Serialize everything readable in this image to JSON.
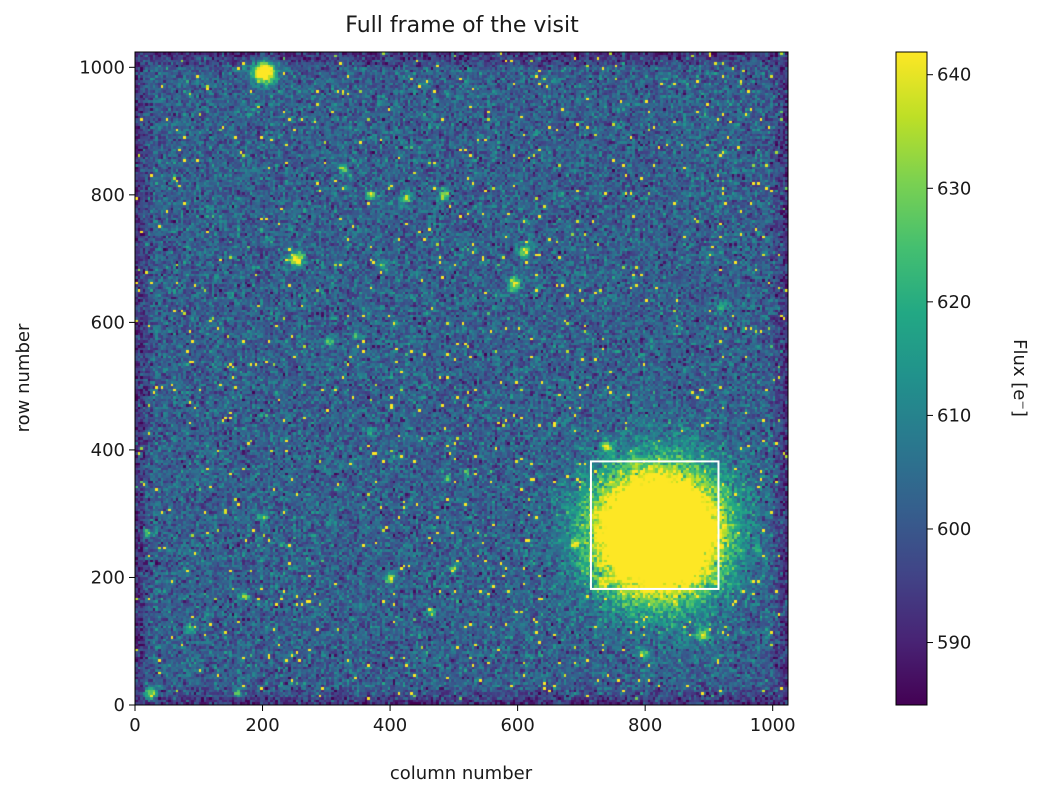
{
  "chart_data": {
    "type": "heatmap",
    "title": "Full frame of the visit",
    "xlabel": "column number",
    "ylabel": "row number",
    "xlim": [
      0,
      1024
    ],
    "ylim": [
      0,
      1024
    ],
    "x_ticks": [
      0,
      200,
      400,
      600,
      800,
      1000
    ],
    "x_tick_labels": [
      "0",
      "200",
      "400",
      "600",
      "800",
      "1000"
    ],
    "y_ticks": [
      0,
      200,
      400,
      600,
      800,
      1000
    ],
    "y_tick_labels": [
      "0",
      "200",
      "400",
      "600",
      "800",
      "1000"
    ],
    "colormap": "viridis",
    "colorbar": {
      "label": "Flux [e⁻]",
      "range": [
        584.5,
        642
      ],
      "ticks": [
        590,
        600,
        610,
        620,
        630,
        640
      ],
      "tick_labels": [
        "590",
        "600",
        "610",
        "620",
        "630",
        "640"
      ]
    },
    "background_level": 602,
    "sources": [
      {
        "x": 203,
        "y": 992,
        "r": 18,
        "peak": 660
      },
      {
        "x": 25,
        "y": 18,
        "r": 10,
        "peak": 645
      },
      {
        "x": 254,
        "y": 699,
        "r": 11,
        "peak": 650
      },
      {
        "x": 595,
        "y": 660,
        "r": 10,
        "peak": 645
      },
      {
        "x": 611,
        "y": 712,
        "r": 9,
        "peak": 640
      },
      {
        "x": 370,
        "y": 800,
        "r": 7,
        "peak": 636
      },
      {
        "x": 425,
        "y": 795,
        "r": 8,
        "peak": 637
      },
      {
        "x": 485,
        "y": 800,
        "r": 8,
        "peak": 638
      },
      {
        "x": 325,
        "y": 840,
        "r": 8,
        "peak": 628
      },
      {
        "x": 387,
        "y": 690,
        "r": 7,
        "peak": 630
      },
      {
        "x": 305,
        "y": 570,
        "r": 7,
        "peak": 633
      },
      {
        "x": 347,
        "y": 580,
        "r": 6,
        "peak": 626
      },
      {
        "x": 368,
        "y": 428,
        "r": 6,
        "peak": 626
      },
      {
        "x": 740,
        "y": 405,
        "r": 8,
        "peak": 640
      },
      {
        "x": 520,
        "y": 365,
        "r": 6,
        "peak": 624
      },
      {
        "x": 490,
        "y": 355,
        "r": 6,
        "peak": 622
      },
      {
        "x": 200,
        "y": 295,
        "r": 7,
        "peak": 628
      },
      {
        "x": 20,
        "y": 270,
        "r": 7,
        "peak": 628
      },
      {
        "x": 305,
        "y": 285,
        "r": 6,
        "peak": 622
      },
      {
        "x": 690,
        "y": 252,
        "r": 7,
        "peak": 632
      },
      {
        "x": 975,
        "y": 245,
        "r": 6,
        "peak": 624
      },
      {
        "x": 400,
        "y": 200,
        "r": 8,
        "peak": 640
      },
      {
        "x": 500,
        "y": 215,
        "r": 7,
        "peak": 632
      },
      {
        "x": 170,
        "y": 170,
        "r": 7,
        "peak": 630
      },
      {
        "x": 465,
        "y": 145,
        "r": 7,
        "peak": 630
      },
      {
        "x": 735,
        "y": 190,
        "r": 7,
        "peak": 632
      },
      {
        "x": 890,
        "y": 110,
        "r": 9,
        "peak": 645
      },
      {
        "x": 85,
        "y": 120,
        "r": 7,
        "peak": 628
      },
      {
        "x": 800,
        "y": 80,
        "r": 7,
        "peak": 628
      },
      {
        "x": 160,
        "y": 20,
        "r": 7,
        "peak": 626
      },
      {
        "x": 920,
        "y": 625,
        "r": 7,
        "peak": 630
      },
      {
        "x": 150,
        "y": 640,
        "r": 6,
        "peak": 618
      },
      {
        "x": 210,
        "y": 730,
        "r": 6,
        "peak": 618
      },
      {
        "x": 820,
        "y": 270,
        "r": 95,
        "peak": 720
      }
    ],
    "annotations": [
      {
        "type": "rectangle",
        "x": [
          715,
          915
        ],
        "y": [
          182,
          382
        ],
        "color": "#ffffff"
      }
    ]
  }
}
